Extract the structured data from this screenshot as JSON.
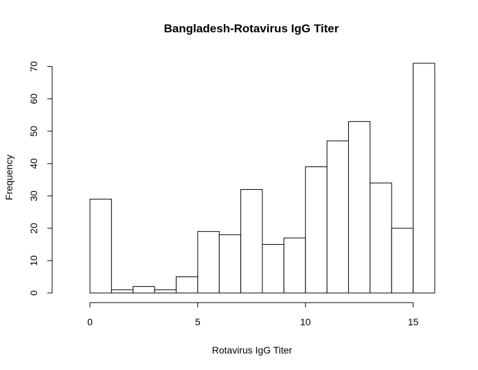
{
  "chart_data": {
    "type": "bar",
    "title": "Bangladesh-Rotavirus IgG Titer",
    "xlabel": "Rotavirus IgG Titer",
    "ylabel": "Frequency",
    "bin_edges": [
      0,
      1,
      2,
      3,
      4,
      5,
      6,
      7,
      8,
      9,
      10,
      11,
      12,
      13,
      14,
      15,
      16
    ],
    "values": [
      29,
      1,
      2,
      1,
      5,
      19,
      18,
      32,
      15,
      17,
      39,
      47,
      53,
      34,
      20,
      71
    ],
    "x_ticks": [
      0,
      5,
      10,
      15
    ],
    "y_ticks": [
      0,
      10,
      20,
      30,
      40,
      50,
      60,
      70
    ],
    "xlim": [
      0,
      16
    ],
    "ylim": [
      0,
      71
    ],
    "grid": false,
    "legend": "none",
    "bar_fill": "#ffffff",
    "bar_stroke": "#000000"
  }
}
